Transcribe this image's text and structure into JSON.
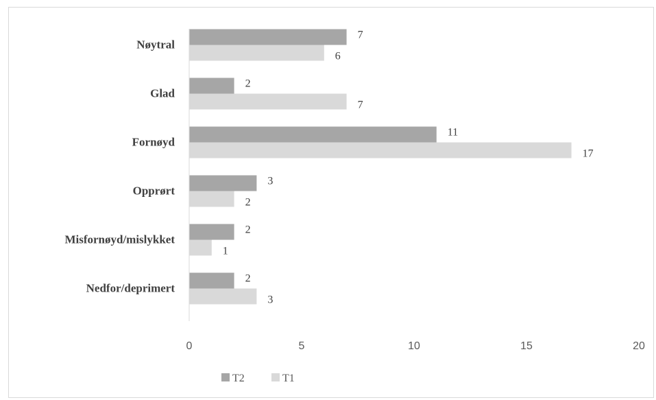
{
  "chart_data": {
    "type": "bar",
    "orientation": "horizontal",
    "categories": [
      "Nøytral",
      "Glad",
      "Fornøyd",
      "Opprørt",
      "Misfornøyd/mislykket",
      "Nedfor/deprimert"
    ],
    "series": [
      {
        "name": "T2",
        "values": [
          7,
          2,
          11,
          3,
          2,
          2
        ],
        "color": "#a6a6a6"
      },
      {
        "name": "T1",
        "values": [
          6,
          7,
          17,
          2,
          1,
          3
        ],
        "color": "#d9d9d9"
      }
    ],
    "xlim": [
      0,
      20
    ],
    "xticks": [
      0,
      5,
      10,
      15,
      20
    ],
    "grid": false,
    "legend": "bottom-left",
    "data_labels": true
  }
}
